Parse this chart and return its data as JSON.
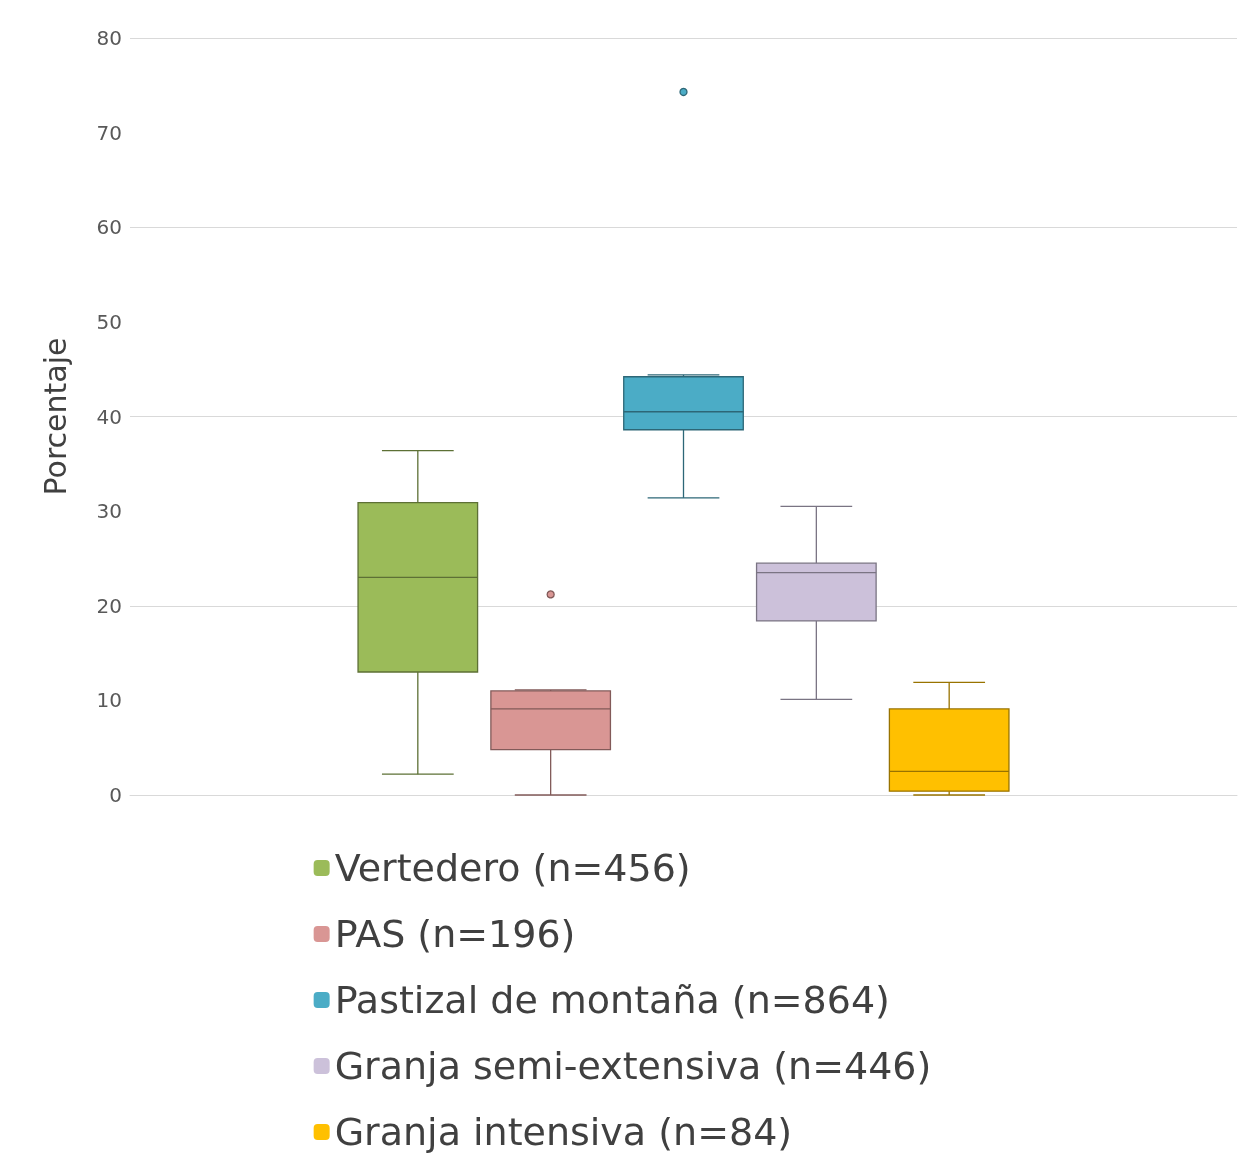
{
  "chart_data": {
    "type": "box",
    "ylabel": "Porcentaje",
    "categories": [
      null
    ],
    "ylim": [
      0,
      80
    ],
    "yticks": [
      0,
      10,
      20,
      30,
      40,
      50,
      60,
      70,
      80
    ],
    "grid": "y",
    "legend": "bottom",
    "series": [
      {
        "name": "Vertedero (n=456)",
        "color": "#9bbb59",
        "boxes": [
          {
            "low": 2.2,
            "q1": 13,
            "median": 23,
            "q3": 30.9,
            "high": 36.4
          }
        ]
      },
      {
        "name": "PAS (n=196)",
        "color": "#d99694",
        "boxes": [
          {
            "low": 0,
            "q1": 4.8,
            "median": 9.1,
            "q3": 11,
            "high": 11.1,
            "outliers": [
              21.2
            ]
          }
        ]
      },
      {
        "name": "Pastizal de montaña (n=864)",
        "color": "#4bacc6",
        "boxes": [
          {
            "low": 31.4,
            "q1": 38.6,
            "median": 40.5,
            "q3": 44.2,
            "high": 44.4,
            "outliers": [
              74.3
            ]
          }
        ]
      },
      {
        "name": "Granja semi-extensiva (n=446)",
        "color": "#ccc1da",
        "boxes": [
          {
            "low": 10.1,
            "q1": 18.4,
            "median": 23.5,
            "q3": 24.5,
            "high": 30.5
          }
        ]
      },
      {
        "name": "Granja intensiva (n=84)",
        "color": "#ffc000",
        "boxes": [
          {
            "low": 0,
            "q1": 0.4,
            "median": 2.5,
            "q3": 9.1,
            "high": 11.9
          }
        ]
      }
    ]
  }
}
